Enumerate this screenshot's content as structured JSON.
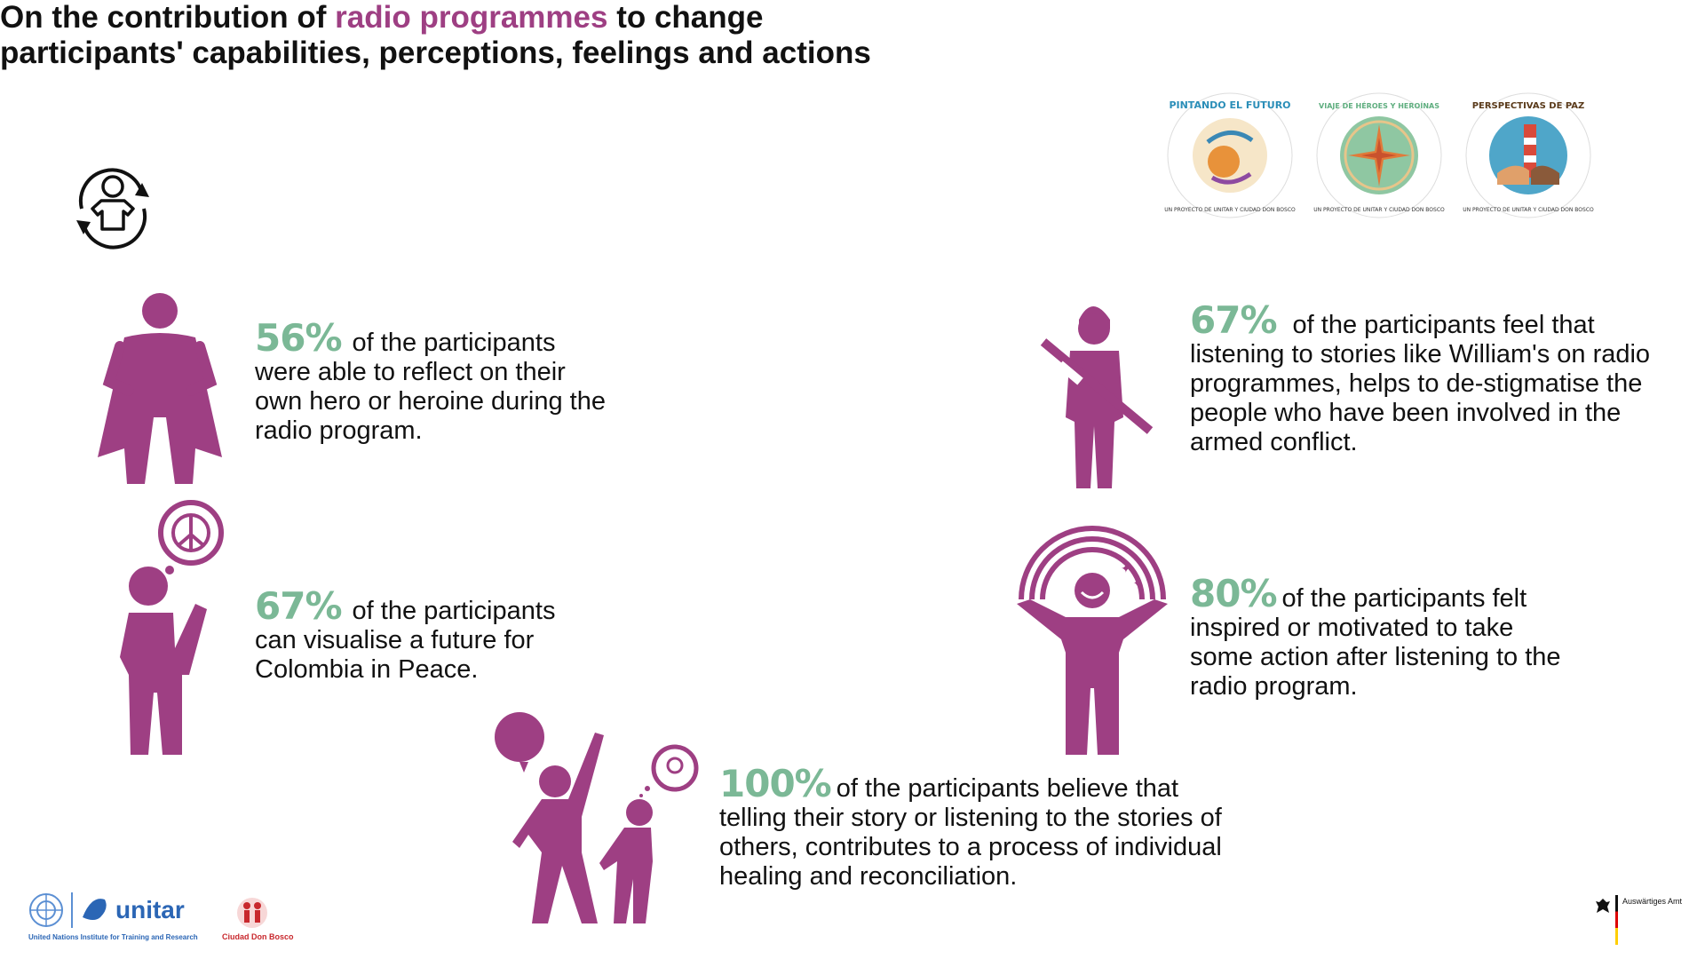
{
  "title": {
    "part1": "On the contribution of ",
    "highlight": "radio programmes",
    "part2": " to change",
    "line2": "participants' capabilities, perceptions, feelings and actions"
  },
  "stats": [
    {
      "pct": "56%",
      "text": "of the participants were able to reflect on their own hero or heroine during the radio program.",
      "icon": "hero-cape-icon"
    },
    {
      "pct": "67%",
      "text": "of the participants can visualise a future for Colombia in Peace.",
      "icon": "peace-thinker-icon"
    },
    {
      "pct": "100%",
      "text": "of the participants believe that telling their story or listening to the stories of others, contributes to a process of individual healing and reconciliation.",
      "icon": "storytelling-people-icon"
    },
    {
      "pct": "67%",
      "text": "of the participants feel that listening to stories like William's on radio programmes, helps to de-stigmatise the people who have been involved in the armed conflict.",
      "icon": "soldier-icon"
    },
    {
      "pct": "80%",
      "text": "of the participants felt inspired or motivated to take some action after listening to the radio program.",
      "icon": "rainbow-person-icon"
    }
  ],
  "logos": [
    {
      "title": "PINTANDO EL FUTURO",
      "subtitle": "UN PROYECTO DE UNITAR Y CIUDAD DON BOSCO"
    },
    {
      "title": "VIAJE DE HÉROES Y HEROÍNAS",
      "subtitle": "UN PROYECTO DE UNITAR Y CIUDAD DON BOSCO"
    },
    {
      "title": "PERSPECTIVAS DE PAZ",
      "subtitle": "UN PROYECTO DE UNITAR Y CIUDAD DON BOSCO"
    }
  ],
  "footer": {
    "unitar_name": "unitar",
    "unitar_full": "United Nations Institute for Training and Research",
    "cdb_name": "Ciudad Don Bosco",
    "aa_name": "Auswärtiges Amt"
  },
  "colors": {
    "accent": "#9e3f83",
    "percent": "#7bb896",
    "text": "#111111"
  }
}
